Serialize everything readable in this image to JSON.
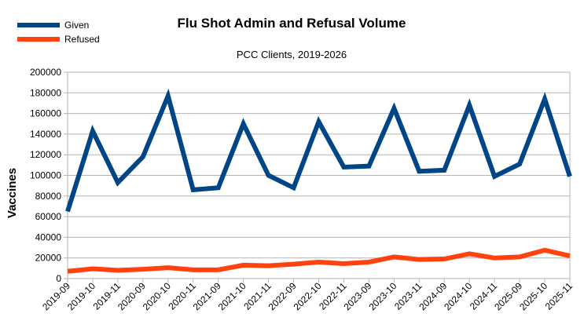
{
  "chart_data": {
    "type": "line",
    "title": "Flu Shot Admin and Refusal Volume",
    "subtitle": "PCC Clients, 2019-2026",
    "xlabel": "",
    "ylabel": "Vaccines",
    "ylim": [
      0,
      200000
    ],
    "yticks": [
      "0",
      "20000",
      "40000",
      "60000",
      "80000",
      "100000",
      "120000",
      "140000",
      "160000",
      "180000",
      "200000"
    ],
    "grid": true,
    "legend_position": "top-left",
    "categories": [
      "2019-09",
      "2019-10",
      "2019-11",
      "2020-09",
      "2020-10",
      "2020-11",
      "2021-09",
      "2021-10",
      "2021-11",
      "2022-09",
      "2022-10",
      "2022-11",
      "2023-09",
      "2023-10",
      "2023-11",
      "2024-09",
      "2024-10",
      "2024-11",
      "2025-09",
      "2025-10",
      "2025-11"
    ],
    "series": [
      {
        "name": "Given",
        "color": "#004586",
        "values": [
          65000,
          143000,
          93000,
          118000,
          177000,
          86000,
          88000,
          150000,
          100000,
          88000,
          152000,
          108000,
          109000,
          165000,
          104000,
          105000,
          168000,
          99000,
          111000,
          174000,
          99000
        ]
      },
      {
        "name": "Refused",
        "color": "#ff420e",
        "values": [
          7000,
          9500,
          8000,
          9000,
          10500,
          8500,
          8500,
          13000,
          12500,
          14000,
          16000,
          14500,
          16000,
          21000,
          18500,
          19000,
          24000,
          20000,
          21000,
          27500,
          22000
        ]
      }
    ]
  }
}
